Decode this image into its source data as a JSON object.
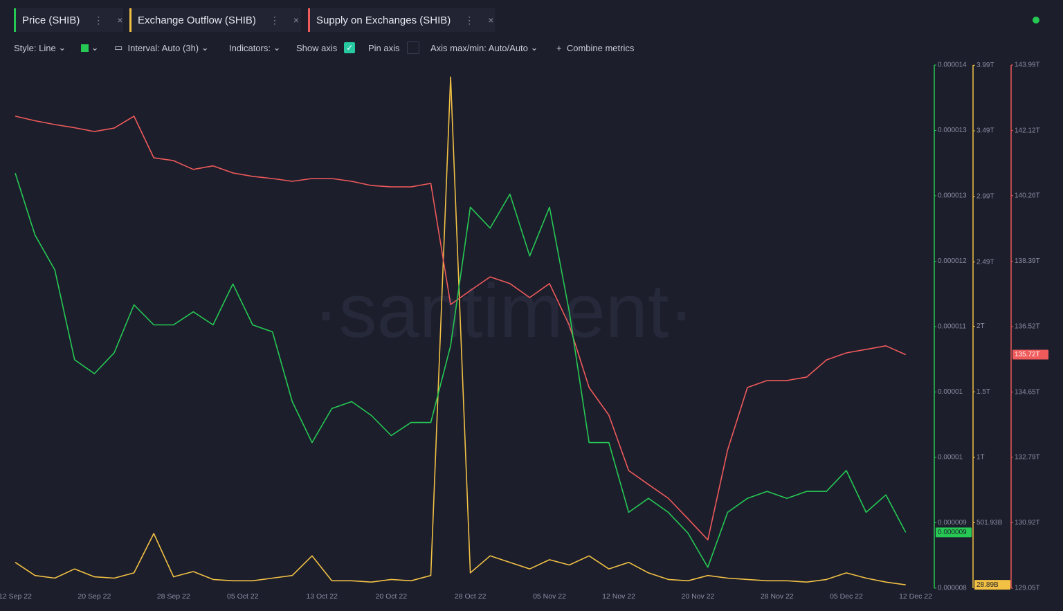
{
  "chart_data": {
    "type": "line",
    "watermark": "·santiment·",
    "toolbar": {
      "style": "Style: Line",
      "interval": "Interval: Auto (3h)",
      "indicators": "Indicators:",
      "show_axis": "Show axis",
      "pin_axis": "Pin axis",
      "axis_range": "Axis max/min: Auto/Auto",
      "combine": "Combine metrics"
    },
    "x": [
      "12 Sep 22",
      "14 Sep 22",
      "16 Sep 22",
      "18 Sep 22",
      "20 Sep 22",
      "22 Sep 22",
      "24 Sep 22",
      "26 Sep 22",
      "28 Sep 22",
      "30 Sep 22",
      "02 Oct 22",
      "04 Oct 22",
      "06 Oct 22",
      "08 Oct 22",
      "10 Oct 22",
      "12 Oct 22",
      "14 Oct 22",
      "16 Oct 22",
      "18 Oct 22",
      "20 Oct 22",
      "22 Oct 22",
      "24 Oct 22",
      "26 Oct 22",
      "28 Oct 22",
      "30 Oct 22",
      "01 Nov 22",
      "03 Nov 22",
      "05 Nov 22",
      "07 Nov 22",
      "09 Nov 22",
      "11 Nov 22",
      "13 Nov 22",
      "15 Nov 22",
      "17 Nov 22",
      "19 Nov 22",
      "21 Nov 22",
      "23 Nov 22",
      "25 Nov 22",
      "27 Nov 22",
      "29 Nov 22",
      "01 Dec 22",
      "03 Dec 22",
      "05 Dec 22",
      "07 Dec 22",
      "09 Dec 22",
      "11 Dec 22"
    ],
    "xlim": [
      "12 Sep 22",
      "12 Dec 22"
    ],
    "xticks": [
      "12 Sep 22",
      "20 Sep 22",
      "28 Sep 22",
      "05 Oct 22",
      "13 Oct 22",
      "20 Oct 22",
      "28 Oct 22",
      "05 Nov 22",
      "12 Nov 22",
      "20 Nov 22",
      "28 Nov 22",
      "05 Dec 22",
      "12 Dec 22"
    ],
    "ylim": [
      8e-06,
      1.4e-05
    ],
    "yticks": [
      {
        "value": 8e-06,
        "label": "0.000008"
      },
      {
        "value": 8.75e-06,
        "label": "0.000009"
      },
      {
        "value": 9.5e-06,
        "label": "0.00001"
      },
      {
        "value": 1.025e-05,
        "label": "0.00001"
      },
      {
        "value": 1.1e-05,
        "label": "0.000011"
      },
      {
        "value": 1.175e-05,
        "label": "0.000012"
      },
      {
        "value": 1.25e-05,
        "label": "0.000013"
      },
      {
        "value": 1.325e-05,
        "label": "0.000013"
      },
      {
        "value": 1.4e-05,
        "label": "0.000014"
      }
    ],
    "y2lim": [
      3.43,
      3991.43
    ],
    "y2ticks": [
      {
        "value": 501.93,
        "label": "501.93B"
      },
      {
        "value": 1000,
        "label": "1T"
      },
      {
        "value": 1500,
        "label": "1.5T"
      },
      {
        "value": 2000,
        "label": "2T"
      },
      {
        "value": 2490,
        "label": "2.49T"
      },
      {
        "value": 2990,
        "label": "2.99T"
      },
      {
        "value": 3490,
        "label": "3.49T"
      },
      {
        "value": 3990,
        "label": "3.99T"
      }
    ],
    "y3lim": [
      129.05,
      143.99
    ],
    "y3ticks": [
      {
        "value": 129.05,
        "label": "129.05T"
      },
      {
        "value": 130.92,
        "label": "130.92T"
      },
      {
        "value": 132.79,
        "label": "132.79T"
      },
      {
        "value": 134.65,
        "label": "134.65T"
      },
      {
        "value": 136.52,
        "label": "136.52T"
      },
      {
        "value": 138.39,
        "label": "138.39T"
      },
      {
        "value": 140.26,
        "label": "140.26T"
      },
      {
        "value": 142.12,
        "label": "142.12T"
      },
      {
        "value": 143.99,
        "label": "143.99T"
      }
    ],
    "series": [
      {
        "name": "Price (SHIB)",
        "color": "#26c953",
        "axis": "y",
        "last_value_label": "0.000009",
        "values": [
          1.276e-05,
          1.205e-05,
          1.165e-05,
          1.062e-05,
          1.046e-05,
          1.07e-05,
          1.125e-05,
          1.102e-05,
          1.102e-05,
          1.117e-05,
          1.102e-05,
          1.149e-05,
          1.102e-05,
          1.094e-05,
          1.014e-05,
          9.67e-06,
          1.006e-05,
          1.014e-05,
          9.98e-06,
          9.75e-06,
          9.9e-06,
          9.9e-06,
          1.078e-05,
          1.237e-05,
          1.213e-05,
          1.252e-05,
          1.181e-05,
          1.237e-05,
          1.117e-05,
          9.67e-06,
          9.67e-06,
          8.87e-06,
          9.03e-06,
          8.87e-06,
          8.63e-06,
          8.24e-06,
          8.87e-06,
          9.03e-06,
          9.11e-06,
          9.03e-06,
          9.11e-06,
          9.11e-06,
          9.35e-06,
          8.87e-06,
          9.07e-06,
          8.64e-06
        ]
      },
      {
        "name": "Exchange Outflow (SHIB)",
        "color": "#f2c144",
        "axis": "y2",
        "last_value_label": "28.89B",
        "values": [
          200,
          100,
          80,
          150,
          90,
          80,
          120,
          420,
          90,
          130,
          70,
          60,
          60,
          80,
          100,
          250,
          60,
          60,
          50,
          70,
          60,
          100,
          3900,
          120,
          250,
          200,
          150,
          220,
          180,
          250,
          150,
          200,
          120,
          70,
          60,
          100,
          80,
          70,
          60,
          60,
          50,
          70,
          120,
          80,
          50,
          28.89
        ]
      },
      {
        "name": "Supply on Exchanges (SHIB)",
        "color": "#ef5a5a",
        "axis": "y3",
        "last_value_label": "135.72T",
        "values": [
          142.53,
          142.4,
          142.29,
          142.2,
          142.09,
          142.19,
          142.53,
          141.34,
          141.26,
          141.01,
          141.11,
          140.91,
          140.81,
          140.75,
          140.67,
          140.75,
          140.75,
          140.67,
          140.55,
          140.51,
          140.51,
          140.61,
          137.15,
          137.55,
          137.94,
          137.75,
          137.35,
          137.75,
          136.56,
          134.78,
          133.99,
          132.41,
          132.01,
          131.62,
          131.03,
          130.43,
          133.0,
          134.78,
          134.98,
          134.98,
          135.08,
          135.57,
          135.77,
          135.87,
          135.97,
          135.72
        ]
      }
    ]
  }
}
